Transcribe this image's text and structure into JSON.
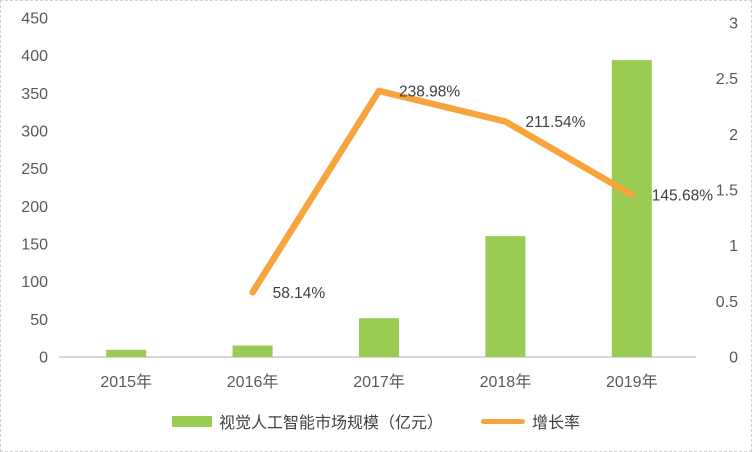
{
  "chart_data": {
    "type": "bar+line combo",
    "title": "",
    "categories": [
      "2015年",
      "2016年",
      "2017年",
      "2018年",
      "2019年"
    ],
    "series": [
      {
        "name": "视觉人工智能市场规模（亿元）",
        "type": "bar",
        "axis": "left",
        "color": "#9ACB52",
        "values": [
          9.6,
          15.2,
          51.5,
          160.4,
          394.1
        ]
      },
      {
        "name": "增长率",
        "type": "line",
        "axis": "right",
        "color": "#F8A43D",
        "values": [
          null,
          0.5814,
          2.3898,
          2.1154,
          1.4568
        ],
        "point_labels": [
          null,
          "58.14%",
          "238.98%",
          "211.54%",
          "145.68%"
        ]
      }
    ],
    "left_axis": {
      "range": [
        0,
        450
      ],
      "ticks": [
        0,
        50,
        100,
        150,
        200,
        250,
        300,
        350,
        400,
        450
      ]
    },
    "right_axis": {
      "range": [
        0,
        3
      ],
      "ticks": [
        "0",
        "0.5",
        "1",
        "1.5",
        "2",
        "2.5",
        "3"
      ]
    },
    "legend_position": "bottom",
    "grid": false
  },
  "colors": {
    "bar": "#9ACB52",
    "line": "#F8A43D",
    "axis_text": "#595959",
    "data_label_text": "#3F3F3F",
    "axis_line": "#D6D6D6",
    "background": "#FFFFFF"
  }
}
